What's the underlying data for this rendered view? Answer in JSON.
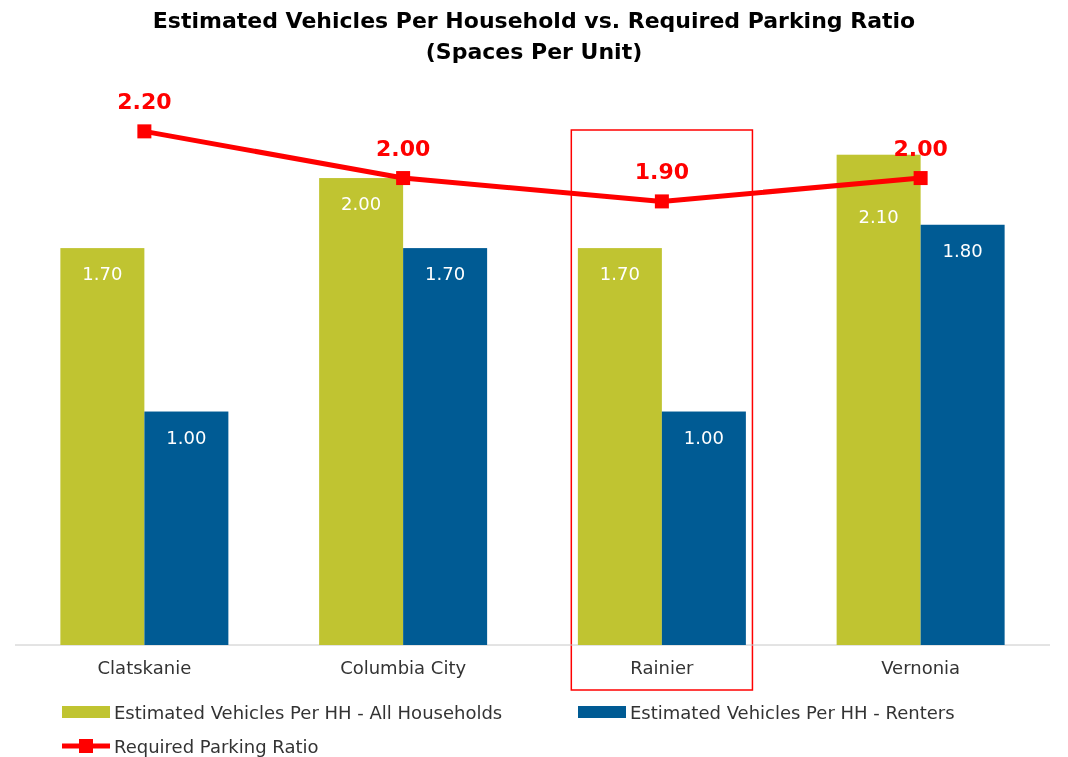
{
  "chart_data": {
    "type": "bar",
    "title": "Estimated Vehicles Per Household vs. Required Parking Ratio\n(Spaces Per Unit)",
    "categories": [
      "Clatskanie",
      "Columbia City",
      "Rainier",
      "Vernonia"
    ],
    "series": [
      {
        "name": "Estimated Vehicles Per HH - All Households",
        "color": "#c0c431",
        "values": [
          1.7,
          2.0,
          1.7,
          2.1
        ],
        "value_labels": [
          "1.70",
          "2.00",
          "1.70",
          "2.10"
        ]
      },
      {
        "name": "Estimated Vehicles Per HH - Renters",
        "color": "#005b94",
        "values": [
          1.0,
          1.7,
          1.0,
          1.8
        ],
        "value_labels": [
          "1.00",
          "1.70",
          "1.00",
          "1.80"
        ]
      },
      {
        "name": "Required Parking Ratio",
        "type": "line",
        "color": "#ff0000",
        "values": [
          2.2,
          2.0,
          1.9,
          2.0
        ],
        "value_labels": [
          "2.20",
          "2.00",
          "1.90",
          "2.00"
        ]
      }
    ],
    "legend": "bottom",
    "marker": "square",
    "line_style": "solid"
  }
}
